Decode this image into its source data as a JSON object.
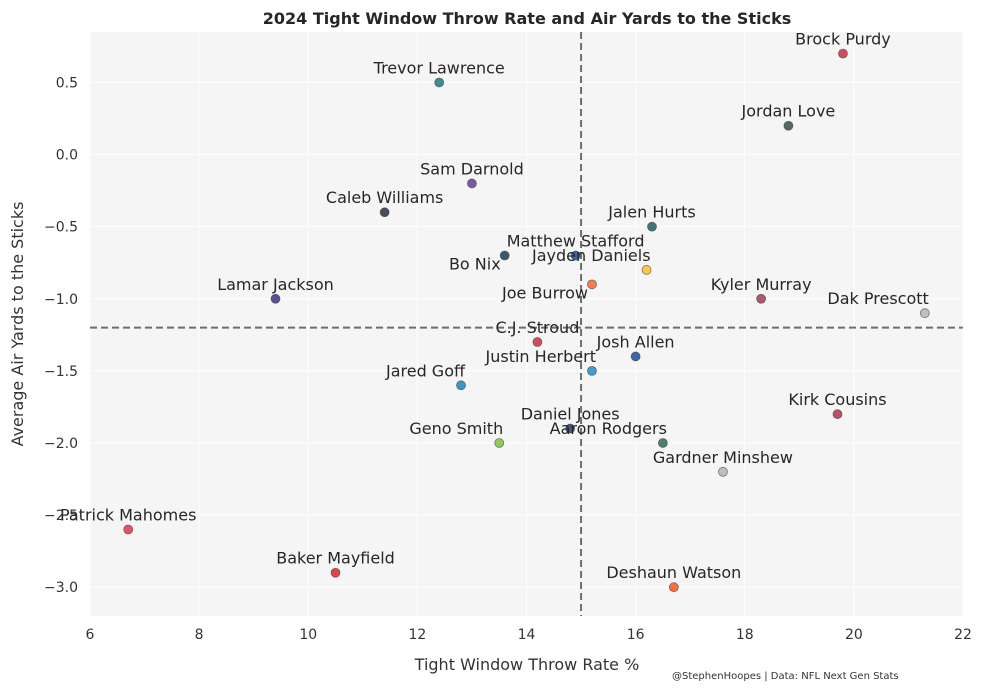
{
  "chart_data": {
    "type": "scatter",
    "title": "2024 Tight Window Throw Rate and Air Yards to the Sticks",
    "xlabel": "Tight Window Throw Rate %",
    "ylabel": "Average Air Yards to the Sticks",
    "xlim": [
      6,
      22
    ],
    "ylim": [
      -3.2,
      0.85
    ],
    "xticks": [
      6,
      8,
      10,
      12,
      14,
      16,
      18,
      20,
      22
    ],
    "xtick_labels": [
      "6",
      "8",
      "10",
      "12",
      "14",
      "16",
      "18",
      "20",
      "22"
    ],
    "yticks": [
      0.5,
      0.0,
      -0.5,
      -1.0,
      -1.5,
      -2.0,
      -2.5,
      -3.0
    ],
    "ytick_labels": [
      "0.5",
      "0.0",
      "−0.5",
      "−1.0",
      "−1.5",
      "−2.0",
      "−2.5",
      "−3.0"
    ],
    "grid": true,
    "reference_lines": {
      "x": 15.0,
      "y": -1.2
    },
    "credit": "@StephenHoopes | Data: NFL Next Gen Stats",
    "points": [
      {
        "label": "Brock Purdy",
        "x": 19.8,
        "y": 0.7,
        "color": "#c8102e",
        "label_pos": "above"
      },
      {
        "label": "Trevor Lawrence",
        "x": 12.4,
        "y": 0.5,
        "color": "#006778",
        "label_pos": "above"
      },
      {
        "label": "Jordan Love",
        "x": 18.8,
        "y": 0.2,
        "color": "#203731",
        "label_pos": "above"
      },
      {
        "label": "Sam Darnold",
        "x": 13.0,
        "y": -0.2,
        "color": "#4f2683",
        "label_pos": "above"
      },
      {
        "label": "Caleb Williams",
        "x": 11.4,
        "y": -0.4,
        "color": "#0b162a",
        "label_pos": "above"
      },
      {
        "label": "Jalen Hurts",
        "x": 16.3,
        "y": -0.5,
        "color": "#004c54",
        "label_pos": "above"
      },
      {
        "label": "Bo Nix",
        "x": 13.6,
        "y": -0.7,
        "color": "#002244",
        "label_pos": "below-left"
      },
      {
        "label": "Matthew Stafford",
        "x": 14.9,
        "y": -0.7,
        "color": "#003594",
        "label_pos": "above"
      },
      {
        "label": "Jayden Daniels",
        "x": 16.2,
        "y": -0.8,
        "color": "#ffb612",
        "label_pos": "above-left"
      },
      {
        "label": "Joe Burrow",
        "x": 15.2,
        "y": -0.9,
        "color": "#fb4f14",
        "label_pos": "below-left"
      },
      {
        "label": "Lamar Jackson",
        "x": 9.4,
        "y": -1.0,
        "color": "#241773",
        "label_pos": "above"
      },
      {
        "label": "Kyler Murray",
        "x": 18.3,
        "y": -1.0,
        "color": "#97233f",
        "label_pos": "above"
      },
      {
        "label": "Dak Prescott",
        "x": 21.3,
        "y": -1.1,
        "color": "#a5acaf",
        "label_pos": "above-left"
      },
      {
        "label": "C.J. Stroud",
        "x": 14.2,
        "y": -1.3,
        "color": "#c8102e",
        "label_pos": "above"
      },
      {
        "label": "Josh Allen",
        "x": 16.0,
        "y": -1.4,
        "color": "#00338d",
        "label_pos": "above"
      },
      {
        "label": "Justin Herbert",
        "x": 15.2,
        "y": -1.5,
        "color": "#0080c6",
        "label_pos": "above-left"
      },
      {
        "label": "Jared Goff",
        "x": 12.8,
        "y": -1.6,
        "color": "#0076b6",
        "label_pos": "above-left"
      },
      {
        "label": "Kirk Cousins",
        "x": 19.7,
        "y": -1.8,
        "color": "#a71930",
        "label_pos": "above"
      },
      {
        "label": "Daniel Jones",
        "x": 14.8,
        "y": -1.9,
        "color": "#0b2265",
        "label_pos": "above"
      },
      {
        "label": "Geno Smith",
        "x": 13.5,
        "y": -2.0,
        "color": "#69be28",
        "label_pos": "above-left"
      },
      {
        "label": "Aaron Rodgers",
        "x": 16.5,
        "y": -2.0,
        "color": "#125740",
        "label_pos": "above-left"
      },
      {
        "label": "Gardner Minshew",
        "x": 17.6,
        "y": -2.2,
        "color": "#a5acaf",
        "label_pos": "above"
      },
      {
        "label": "Patrick Mahomes",
        "x": 6.7,
        "y": -2.6,
        "color": "#e31837",
        "label_pos": "above"
      },
      {
        "label": "Baker Mayfield",
        "x": 10.5,
        "y": -2.9,
        "color": "#d50a0a",
        "label_pos": "above"
      },
      {
        "label": "Deshaun Watson",
        "x": 16.7,
        "y": -3.0,
        "color": "#ff3c00",
        "label_pos": "above"
      }
    ]
  }
}
